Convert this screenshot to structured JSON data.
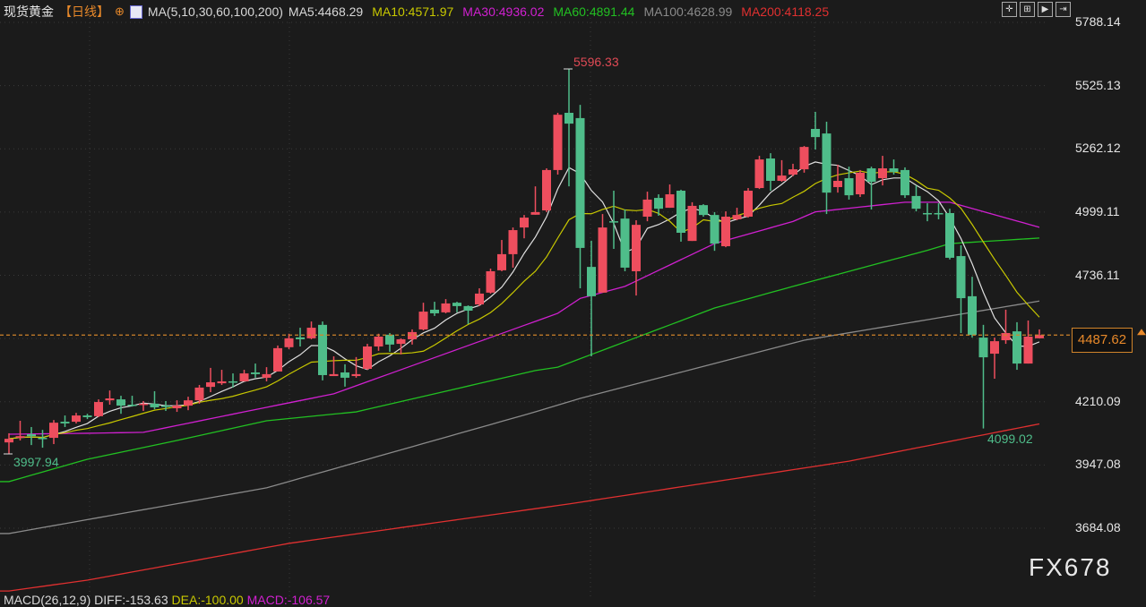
{
  "header": {
    "symbol": "现货黄金",
    "period": "【日线】",
    "add_icon": "circle-plus-icon",
    "ma_params": "MA(5,10,30,60,100,200)",
    "ma_values": [
      {
        "label": "MA5:4468.29",
        "color": "#d8d8d8"
      },
      {
        "label": "MA10:4571.97",
        "color": "#c8c800"
      },
      {
        "label": "MA30:4936.02",
        "color": "#d020d0"
      },
      {
        "label": "MA60:4891.44",
        "color": "#22c022"
      },
      {
        "label": "MA100:4628.99",
        "color": "#8a8a8a"
      },
      {
        "label": "MA200:4118.25",
        "color": "#e03030"
      }
    ]
  },
  "toolbar": [
    "crosshair-icon",
    "fit-icon",
    "play-icon",
    "exit-icon"
  ],
  "watermark": "FX678",
  "macd_label": {
    "name": "MACD(26,12,9)",
    "diff": "DIFF:-153.63",
    "dea": "DEA:-100.00",
    "macd": "MACD:-106.57"
  },
  "chart_data": {
    "type": "candlestick",
    "up_color": "#ee4e5e",
    "down_color": "#4fbd8a",
    "y_ticks": [
      "5788.14",
      "5525.13",
      "5262.12",
      "4999.11",
      "4736.11",
      "4473.10",
      "4210.09",
      "3947.08",
      "3684.08"
    ],
    "ylim": [
      3684.08,
      5788.14
    ],
    "last_price": "4487.62",
    "high_label": "5596.33",
    "low_label": "4099.02",
    "start_low_label": "3997.94",
    "candles_ohlc": [
      [
        4041,
        4079,
        3993,
        4056
      ],
      [
        4060,
        4131,
        4049,
        4067
      ],
      [
        4075,
        4105,
        4030,
        4067
      ],
      [
        4060,
        4093,
        4019,
        4056
      ],
      [
        4060,
        4134,
        4034,
        4123
      ],
      [
        4127,
        4153,
        4105,
        4120
      ],
      [
        4127,
        4164,
        4120,
        4153
      ],
      [
        4153,
        4160,
        4138,
        4146
      ],
      [
        4150,
        4220,
        4146,
        4209
      ],
      [
        4216,
        4257,
        4198,
        4224
      ],
      [
        4220,
        4235,
        4160,
        4194
      ],
      [
        4198,
        4235,
        4190,
        4194
      ],
      [
        4198,
        4213,
        4172,
        4202
      ],
      [
        4202,
        4254,
        4179,
        4187
      ],
      [
        4194,
        4213,
        4172,
        4190
      ],
      [
        4183,
        4216,
        4168,
        4194
      ],
      [
        4194,
        4231,
        4175,
        4216
      ],
      [
        4216,
        4280,
        4202,
        4269
      ],
      [
        4272,
        4351,
        4250,
        4291
      ],
      [
        4287,
        4343,
        4280,
        4295
      ],
      [
        4295,
        4328,
        4269,
        4291
      ],
      [
        4295,
        4343,
        4295,
        4328
      ],
      [
        4332,
        4369,
        4310,
        4325
      ],
      [
        4310,
        4354,
        4295,
        4325
      ],
      [
        4336,
        4444,
        4336,
        4433
      ],
      [
        4437,
        4493,
        4429,
        4474
      ],
      [
        4478,
        4518,
        4440,
        4470
      ],
      [
        4474,
        4544,
        4470,
        4518
      ],
      [
        4530,
        4544,
        4299,
        4321
      ],
      [
        4317,
        4399,
        4317,
        4325
      ],
      [
        4332,
        4366,
        4273,
        4310
      ],
      [
        4317,
        4396,
        4310,
        4325
      ],
      [
        4347,
        4451,
        4343,
        4440
      ],
      [
        4440,
        4493,
        4422,
        4481
      ],
      [
        4489,
        4496,
        4418,
        4448
      ],
      [
        4451,
        4474,
        4407,
        4470
      ],
      [
        4470,
        4511,
        4448,
        4500
      ],
      [
        4511,
        4622,
        4507,
        4585
      ],
      [
        4593,
        4626,
        4567,
        4578
      ],
      [
        4582,
        4637,
        4578,
        4619
      ],
      [
        4622,
        4626,
        4582,
        4608
      ],
      [
        4608,
        4611,
        4533,
        4589
      ],
      [
        4615,
        4682,
        4608,
        4660
      ],
      [
        4664,
        4764,
        4660,
        4753
      ],
      [
        4757,
        4883,
        4753,
        4824
      ],
      [
        4824,
        4935,
        4768,
        4924
      ],
      [
        4935,
        4987,
        4890,
        4976
      ],
      [
        4988,
        5106,
        4988,
        4999
      ],
      [
        5006,
        5181,
        4999,
        5174
      ],
      [
        5174,
        5412,
        5155,
        5404
      ],
      [
        5412,
        5596.33,
        5106,
        5367
      ],
      [
        5390,
        5445,
        4682,
        4850
      ],
      [
        4771,
        4880,
        4399,
        4649
      ],
      [
        4664,
        4991,
        4664,
        4935
      ],
      [
        4961,
        5088,
        4846,
        4957
      ],
      [
        4972,
        5010,
        4753,
        4768
      ],
      [
        4753,
        4965,
        4652,
        4946
      ],
      [
        4980,
        5084,
        4961,
        5051
      ],
      [
        5058,
        5073,
        4984,
        5013
      ],
      [
        5017,
        5114,
        5017,
        5073
      ],
      [
        5088,
        5092,
        4876,
        4913
      ],
      [
        4879,
        5040,
        4879,
        5025
      ],
      [
        5028,
        5032,
        4980,
        4987
      ],
      [
        4987,
        4999,
        4838,
        4868
      ],
      [
        4857,
        5002,
        4853,
        4980
      ],
      [
        4969,
        5017,
        4965,
        4987
      ],
      [
        4980,
        5099,
        4976,
        5088
      ],
      [
        5099,
        5233,
        5095,
        5218
      ],
      [
        5222,
        5244,
        5088,
        5129
      ],
      [
        5129,
        5215,
        5125,
        5151
      ],
      [
        5155,
        5200,
        5148,
        5177
      ],
      [
        5177,
        5274,
        5163,
        5270
      ],
      [
        5345,
        5416,
        5259,
        5311
      ],
      [
        5326,
        5375,
        4991,
        5080
      ],
      [
        5103,
        5196,
        5080,
        5129
      ],
      [
        5140,
        5188,
        5051,
        5069
      ],
      [
        5073,
        5174,
        5062,
        5163
      ],
      [
        5181,
        5188,
        5010,
        5125
      ],
      [
        5140,
        5233,
        5110,
        5181
      ],
      [
        5181,
        5218,
        5155,
        5166
      ],
      [
        5174,
        5185,
        5058,
        5069
      ],
      [
        5066,
        5110,
        5002,
        5013
      ],
      [
        4995,
        5036,
        4961,
        4991
      ],
      [
        4995,
        5036,
        4969,
        4991
      ],
      [
        4995,
        5013,
        4802,
        4809
      ],
      [
        4816,
        4861,
        4496,
        4641
      ],
      [
        4649,
        4730,
        4477,
        4488
      ],
      [
        4477,
        4530,
        4099.02,
        4395
      ],
      [
        4410,
        4477,
        4306,
        4462
      ],
      [
        4466,
        4593,
        4451,
        4496
      ],
      [
        4503,
        4541,
        4343,
        4369
      ],
      [
        4369,
        4548,
        4369,
        4481
      ],
      [
        4474,
        4511,
        4474,
        4487.62
      ]
    ],
    "ma_series": [
      {
        "name": "MA30",
        "color": "#d020d0",
        "points": [
          [
            0,
            4075
          ],
          [
            7,
            4079
          ],
          [
            12,
            4083
          ],
          [
            23,
            4187
          ],
          [
            29,
            4243
          ],
          [
            49,
            4578
          ],
          [
            51,
            4640
          ],
          [
            55,
            4690
          ],
          [
            63,
            4868
          ],
          [
            70,
            4960
          ],
          [
            72,
            5000
          ],
          [
            80,
            5040
          ],
          [
            84,
            5040
          ],
          [
            92,
            4936
          ]
        ]
      },
      {
        "name": "MA60",
        "color": "#22c022",
        "points": [
          [
            0,
            3878
          ],
          [
            7,
            3971
          ],
          [
            15,
            4049
          ],
          [
            23,
            4131
          ],
          [
            31,
            4168
          ],
          [
            47,
            4340
          ],
          [
            49,
            4354
          ],
          [
            63,
            4600
          ],
          [
            70,
            4690
          ],
          [
            82,
            4840
          ],
          [
            84,
            4868
          ],
          [
            92,
            4891
          ]
        ]
      },
      {
        "name": "MA100",
        "color": "#8a8a8a",
        "points": [
          [
            0,
            3662
          ],
          [
            23,
            3852
          ],
          [
            47,
            4168
          ],
          [
            51,
            4224
          ],
          [
            71,
            4466
          ],
          [
            92,
            4629
          ]
        ]
      },
      {
        "name": "MA200",
        "color": "#e03030",
        "points": [
          [
            0,
            3423
          ],
          [
            7,
            3468
          ],
          [
            25,
            3621
          ],
          [
            50,
            3785
          ],
          [
            75,
            3963
          ],
          [
            92,
            4118
          ]
        ]
      }
    ],
    "computed_ma": [
      {
        "name": "MA5",
        "period": 5,
        "color": "#e0e0e0"
      },
      {
        "name": "MA10",
        "period": 10,
        "color": "#c8c800"
      }
    ],
    "grid": true
  }
}
